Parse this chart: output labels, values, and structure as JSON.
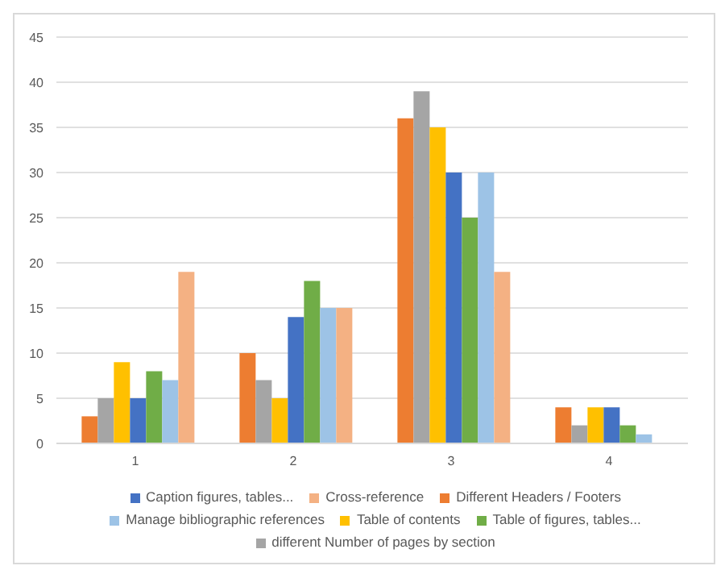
{
  "chart_data": {
    "type": "bar",
    "categories": [
      "1",
      "2",
      "3",
      "4"
    ],
    "series": [
      {
        "name": "Different Headers / Footers",
        "color": "#ed7d31",
        "values": [
          3,
          10,
          36,
          4
        ]
      },
      {
        "name": "different Number of pages by section",
        "color": "#a5a5a5",
        "values": [
          5,
          7,
          39,
          2
        ]
      },
      {
        "name": "Table of contents",
        "color": "#ffc000",
        "values": [
          9,
          5,
          35,
          4
        ]
      },
      {
        "name": "Caption figures, tables...",
        "color": "#4472c4",
        "values": [
          5,
          14,
          30,
          4
        ]
      },
      {
        "name": "Table of figures, tables...",
        "color": "#70ad47",
        "values": [
          8,
          18,
          25,
          2
        ]
      },
      {
        "name": "Manage bibliographic references",
        "color": "#9dc3e6",
        "values": [
          7,
          15,
          30,
          1
        ]
      },
      {
        "name": "Cross-reference",
        "color": "#f4b183",
        "values": [
          19,
          15,
          19,
          0
        ]
      }
    ],
    "ylim": [
      0,
      45
    ],
    "yticks": [
      0,
      5,
      10,
      15,
      20,
      25,
      30,
      35,
      40,
      45
    ],
    "grid": "y",
    "legend": "bottom"
  }
}
